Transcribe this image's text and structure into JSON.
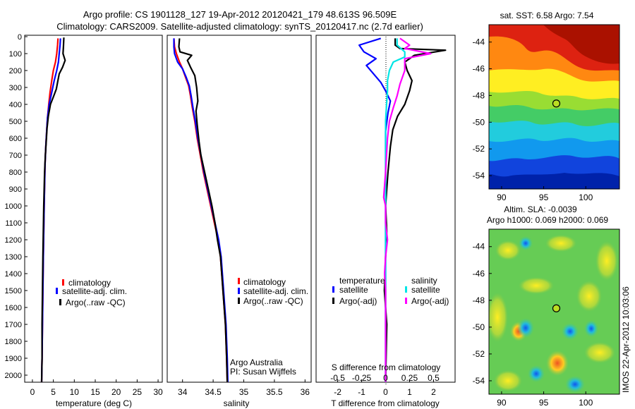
{
  "header": {
    "line1": "Argo profile: CS 1901128_127 19-Apr-2012 20120421_179 48.613S 96.509E",
    "line2": "Climatology: CARS2009. Satellite-adjusted climatology: synTS_20120417.nc (2.7d earlier)"
  },
  "side_stamp": "IMOS 22-Apr-2012 10:03:06",
  "colors": {
    "climatology": "#ff0000",
    "satellite": "#0000ff",
    "argo": "#000000",
    "sal_satellite": "#00e5e5",
    "sal_argo": "#ff00ff"
  },
  "chart_data": [
    {
      "id": "temperature",
      "type": "line",
      "xlabel": "temperature (deg C)",
      "ylabel": "",
      "xlim": [
        -1,
        31
      ],
      "ylim": [
        2050,
        0
      ],
      "xticks": [
        0,
        5,
        10,
        15,
        20,
        25,
        30
      ],
      "yticks": [
        0,
        100,
        200,
        300,
        400,
        500,
        600,
        700,
        800,
        900,
        1000,
        1100,
        1200,
        1300,
        1400,
        1500,
        1600,
        1700,
        1800,
        1900,
        2000
      ],
      "series": [
        {
          "name": "climatology",
          "color": "#ff0000",
          "points": [
            [
              6.1,
              10
            ],
            [
              6.0,
              50
            ],
            [
              5.8,
              100
            ],
            [
              5.5,
              150
            ],
            [
              5.0,
              200
            ],
            [
              4.6,
              260
            ],
            [
              4.2,
              330
            ],
            [
              3.9,
              400
            ],
            [
              3.6,
              480
            ],
            [
              3.4,
              560
            ],
            [
              3.2,
              650
            ],
            [
              3.0,
              760
            ],
            [
              2.9,
              880
            ],
            [
              2.8,
              1000
            ],
            [
              2.7,
              1150
            ],
            [
              2.6,
              1300
            ],
            [
              2.5,
              1500
            ],
            [
              2.4,
              1700
            ],
            [
              2.3,
              1900
            ],
            [
              2.2,
              2040
            ]
          ]
        },
        {
          "name": "satellite-adj. clim.",
          "color": "#0000ff",
          "points": [
            [
              6.7,
              10
            ],
            [
              6.6,
              50
            ],
            [
              6.4,
              100
            ],
            [
              6.2,
              150
            ],
            [
              5.8,
              200
            ],
            [
              5.2,
              260
            ],
            [
              4.6,
              330
            ],
            [
              4.0,
              400
            ],
            [
              3.6,
              480
            ],
            [
              3.4,
              560
            ],
            [
              3.2,
              650
            ],
            [
              3.0,
              760
            ],
            [
              2.9,
              880
            ],
            [
              2.8,
              1000
            ],
            [
              2.7,
              1150
            ],
            [
              2.6,
              1300
            ],
            [
              2.5,
              1500
            ],
            [
              2.4,
              1700
            ],
            [
              2.3,
              1900
            ],
            [
              2.2,
              2040
            ]
          ]
        },
        {
          "name": "Argo(..raw -QC)",
          "color": "#000000",
          "points": [
            [
              7.5,
              5
            ],
            [
              7.4,
              60
            ],
            [
              7.3,
              100
            ],
            [
              7.8,
              140
            ],
            [
              7.2,
              180
            ],
            [
              6.4,
              220
            ],
            [
              6.0,
              270
            ],
            [
              5.7,
              310
            ],
            [
              5.1,
              350
            ],
            [
              4.3,
              400
            ],
            [
              3.8,
              470
            ],
            [
              3.5,
              540
            ],
            [
              3.3,
              620
            ],
            [
              3.1,
              700
            ],
            [
              2.9,
              800
            ],
            [
              2.8,
              900
            ],
            [
              2.7,
              1000
            ],
            [
              2.6,
              1150
            ],
            [
              2.5,
              1300
            ],
            [
              2.4,
              1500
            ],
            [
              2.3,
              1700
            ],
            [
              2.3,
              1900
            ],
            [
              2.2,
              2040
            ]
          ]
        }
      ],
      "legend": [
        "climatology",
        "satellite-adj. clim.",
        "Argo(..raw -QC)"
      ]
    },
    {
      "id": "salinity",
      "type": "line",
      "xlabel": "salinity",
      "xlim": [
        33.75,
        36.1
      ],
      "ylim": [
        2050,
        0
      ],
      "xticks": [
        34,
        34.5,
        35,
        35.5,
        36
      ],
      "xticklabels": [
        "34",
        "34.5",
        "35",
        "35.5",
        "36"
      ],
      "series": [
        {
          "name": "climatology",
          "color": "#ff0000",
          "points": [
            [
              33.86,
              10
            ],
            [
              33.87,
              60
            ],
            [
              33.9,
              100
            ],
            [
              33.95,
              150
            ],
            [
              34.0,
              190
            ],
            [
              34.05,
              240
            ],
            [
              34.1,
              290
            ],
            [
              34.13,
              350
            ],
            [
              34.16,
              420
            ],
            [
              34.2,
              500
            ],
            [
              34.24,
              600
            ],
            [
              34.29,
              700
            ],
            [
              34.34,
              800
            ],
            [
              34.4,
              900
            ],
            [
              34.46,
              1000
            ],
            [
              34.52,
              1100
            ],
            [
              34.58,
              1200
            ],
            [
              34.62,
              1300
            ],
            [
              34.66,
              1500
            ],
            [
              34.7,
              1700
            ],
            [
              34.72,
              1900
            ],
            [
              34.73,
              2040
            ]
          ]
        },
        {
          "name": "satellite-adj. clim.",
          "color": "#0000ff",
          "points": [
            [
              33.86,
              10
            ],
            [
              33.86,
              60
            ],
            [
              33.87,
              100
            ],
            [
              33.92,
              150
            ],
            [
              34.0,
              190
            ],
            [
              34.06,
              240
            ],
            [
              34.11,
              290
            ],
            [
              34.14,
              350
            ],
            [
              34.17,
              420
            ],
            [
              34.21,
              500
            ],
            [
              34.25,
              600
            ],
            [
              34.3,
              700
            ],
            [
              34.35,
              800
            ],
            [
              34.41,
              900
            ],
            [
              34.47,
              1000
            ],
            [
              34.53,
              1100
            ],
            [
              34.59,
              1200
            ],
            [
              34.63,
              1300
            ],
            [
              34.67,
              1500
            ],
            [
              34.71,
              1700
            ],
            [
              34.73,
              1900
            ],
            [
              34.74,
              2040
            ]
          ]
        },
        {
          "name": "Argo(..raw -QC)",
          "color": "#000000",
          "points": [
            [
              33.95,
              10
            ],
            [
              33.94,
              60
            ],
            [
              33.96,
              90
            ],
            [
              34.15,
              110
            ],
            [
              34.08,
              140
            ],
            [
              34.13,
              180
            ],
            [
              34.2,
              230
            ],
            [
              34.23,
              300
            ],
            [
              34.25,
              380
            ],
            [
              34.22,
              440
            ],
            [
              34.24,
              520
            ],
            [
              34.27,
              620
            ],
            [
              34.3,
              700
            ],
            [
              34.36,
              800
            ],
            [
              34.42,
              900
            ],
            [
              34.48,
              1000
            ],
            [
              34.53,
              1100
            ],
            [
              34.57,
              1200
            ],
            [
              34.62,
              1300
            ],
            [
              34.66,
              1500
            ],
            [
              34.7,
              1700
            ],
            [
              34.72,
              1900
            ],
            [
              34.73,
              2040
            ]
          ]
        }
      ],
      "legend": [
        "climatology",
        "satellite-adj. clim.",
        "Argo(..raw -QC)"
      ],
      "annotation": [
        "Argo Australia",
        "PI: Susan Wijffels"
      ]
    },
    {
      "id": "difference",
      "type": "line",
      "xlabel": "T difference from climatology",
      "top_label": "S difference from climatology",
      "xlim": [
        -2.9,
        2.9
      ],
      "ylim": [
        2050,
        0
      ],
      "xticks": [
        -2,
        -1,
        0,
        1,
        2
      ],
      "top_ticks": [
        -0.5,
        -0.25,
        0,
        0.25,
        0.5
      ],
      "top_ticklabels": [
        "-0.5",
        "-0.25",
        "0",
        "0.25",
        "0.5"
      ],
      "series": [
        {
          "name": "temperature satellite",
          "color": "#0000ff",
          "points": [
            [
              -0.2,
              10
            ],
            [
              -1.1,
              50
            ],
            [
              -0.9,
              90
            ],
            [
              -0.4,
              130
            ],
            [
              -0.8,
              170
            ],
            [
              -0.5,
              220
            ],
            [
              -0.2,
              270
            ],
            [
              0.0,
              320
            ],
            [
              0.2,
              380
            ],
            [
              0.1,
              450
            ],
            [
              0.0,
              560
            ],
            [
              0.0,
              700
            ],
            [
              0.0,
              900
            ],
            [
              0.0,
              1200
            ],
            [
              0.0,
              1500
            ],
            [
              0.0,
              2040
            ]
          ]
        },
        {
          "name": "temperature Argo(-adj)",
          "color": "#000000",
          "points": [
            [
              0.4,
              10
            ],
            [
              0.4,
              50
            ],
            [
              0.6,
              70
            ],
            [
              2.5,
              80
            ],
            [
              1.2,
              110
            ],
            [
              0.8,
              150
            ],
            [
              0.9,
              200
            ],
            [
              1.1,
              260
            ],
            [
              1.0,
              320
            ],
            [
              0.8,
              400
            ],
            [
              0.5,
              470
            ],
            [
              0.3,
              550
            ],
            [
              0.2,
              650
            ],
            [
              0.1,
              800
            ],
            [
              0.0,
              1000
            ],
            [
              0.05,
              1150
            ],
            [
              0.0,
              1300
            ],
            [
              -0.05,
              1500
            ],
            [
              0.05,
              1700
            ],
            [
              0.0,
              2040
            ]
          ]
        },
        {
          "name": "salinity satellite",
          "color": "#00e5e5",
          "points": [
            [
              0.12,
              10
            ],
            [
              0.12,
              50
            ],
            [
              0.2,
              90
            ],
            [
              0.2,
              120
            ],
            [
              0.08,
              150
            ],
            [
              0.04,
              200
            ],
            [
              0.02,
              260
            ],
            [
              0.02,
              320
            ],
            [
              0.01,
              400
            ],
            [
              0.0,
              500
            ],
            [
              0.0,
              700
            ],
            [
              0.0,
              900
            ],
            [
              0.0,
              1100
            ],
            [
              0.0,
              1300
            ],
            [
              0.0,
              1500
            ],
            [
              0.0,
              2040
            ]
          ]
        },
        {
          "name": "salinity Argo(-adj)",
          "color": "#ff00ff",
          "points": [
            [
              0.15,
              10
            ],
            [
              0.25,
              50
            ],
            [
              0.2,
              70
            ],
            [
              0.47,
              100
            ],
            [
              0.2,
              130
            ],
            [
              0.2,
              200
            ],
            [
              0.15,
              280
            ],
            [
              0.12,
              350
            ],
            [
              0.08,
              420
            ],
            [
              0.04,
              500
            ],
            [
              0.02,
              600
            ],
            [
              0.0,
              800
            ],
            [
              -0.02,
              950
            ],
            [
              0.0,
              1000
            ],
            [
              0.0,
              1100
            ],
            [
              0.02,
              1200
            ],
            [
              0.0,
              1300
            ],
            [
              -0.01,
              1400
            ],
            [
              0.0,
              1500
            ],
            [
              0.0,
              2040
            ]
          ]
        }
      ],
      "legend": {
        "temperature": {
          "title": "temperature",
          "items": [
            "satellite",
            "Argo(-adj)"
          ]
        },
        "salinity": {
          "title": "salinity",
          "items": [
            "satellite",
            "Argo(-adj)"
          ]
        }
      }
    },
    {
      "id": "sst_map",
      "type": "heatmap",
      "title": "sat. SST: 6.58 Argo: 7.54",
      "xlim": [
        88.5,
        104
      ],
      "ylim": [
        -55,
        -42.7
      ],
      "xticks": [
        90,
        95,
        100
      ],
      "yticks": [
        -44,
        -46,
        -48,
        -50,
        -52,
        -54
      ],
      "marker": [
        96.5,
        -48.6
      ]
    },
    {
      "id": "sla_map",
      "type": "heatmap",
      "title_lines": [
        "Altim. SLA: -0.0039",
        "Argo h1000: 0.069 h2000: 0.069"
      ],
      "xlim": [
        88.5,
        104
      ],
      "ylim": [
        -55,
        -42.7
      ],
      "xticks": [
        90,
        95,
        100
      ],
      "yticks": [
        -44,
        -46,
        -48,
        -50,
        -52,
        -54
      ],
      "marker": [
        96.5,
        -48.6
      ]
    }
  ]
}
